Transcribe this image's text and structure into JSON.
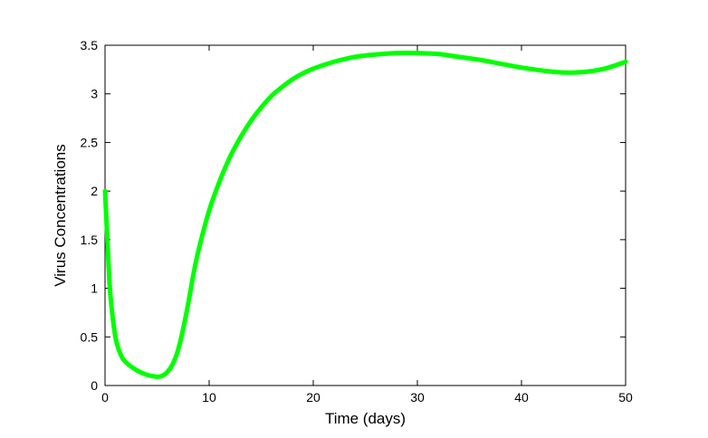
{
  "chart_data": {
    "type": "line",
    "title": "",
    "xlabel": "Time (days)",
    "ylabel": "Virus Concentrations",
    "xlim": [
      0,
      50
    ],
    "ylim": [
      0,
      3.5
    ],
    "xticks": [
      0,
      10,
      20,
      30,
      40,
      50
    ],
    "xtick_labels": [
      "0",
      "10",
      "20",
      "30",
      "40",
      "50"
    ],
    "yticks": [
      0,
      0.5,
      1,
      1.5,
      2,
      2.5,
      3,
      3.5
    ],
    "ytick_labels": [
      "0",
      "0.5",
      "1",
      "1.5",
      "2",
      "2.5",
      "3",
      "3.5"
    ],
    "grid": false,
    "legend": "none",
    "series": [
      {
        "color": "#00ff00",
        "x": [
          0,
          0.25,
          0.5,
          1,
          1.5,
          2,
          3,
          4,
          5,
          5.5,
          6,
          6.5,
          7,
          7.5,
          8,
          8.5,
          9,
          10,
          11,
          12,
          13,
          14,
          15,
          16,
          17,
          18,
          19,
          20,
          22,
          24,
          26,
          28,
          30,
          32,
          34,
          36,
          38,
          40,
          42,
          44,
          46,
          48,
          50
        ],
        "y": [
          2.0,
          1.45,
          0.95,
          0.5,
          0.32,
          0.24,
          0.16,
          0.11,
          0.09,
          0.1,
          0.14,
          0.22,
          0.36,
          0.58,
          0.85,
          1.15,
          1.4,
          1.8,
          2.1,
          2.35,
          2.55,
          2.72,
          2.86,
          2.98,
          3.07,
          3.15,
          3.21,
          3.26,
          3.33,
          3.38,
          3.405,
          3.42,
          3.42,
          3.41,
          3.38,
          3.35,
          3.31,
          3.27,
          3.24,
          3.22,
          3.225,
          3.26,
          3.33
        ]
      }
    ]
  }
}
